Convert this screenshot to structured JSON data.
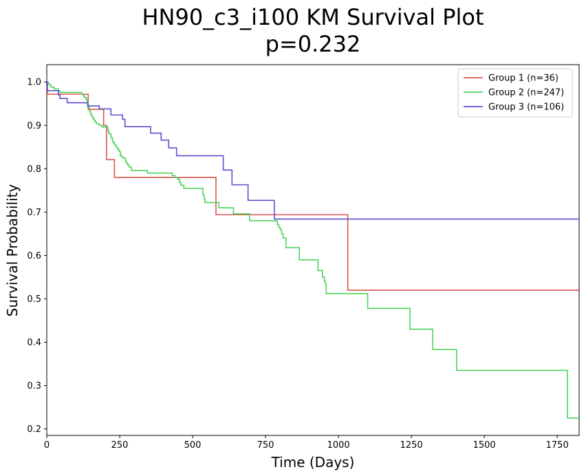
{
  "chart_data": {
    "type": "line",
    "step": true,
    "title": "HN90_c3_i100 KM Survival Plot",
    "subtitle": "p=0.232",
    "xlabel": "Time (Days)",
    "ylabel": "Survival Probability",
    "xlim": [
      0,
      1825
    ],
    "ylim": [
      0.185,
      1.04
    ],
    "xticks": [
      0,
      250,
      500,
      750,
      1000,
      1250,
      1500,
      1750
    ],
    "yticks": [
      0.2,
      0.3,
      0.4,
      0.5,
      0.6,
      0.7,
      0.8,
      0.9,
      1.0
    ],
    "xtick_labels": [
      "0",
      "250",
      "500",
      "750",
      "1000",
      "1250",
      "1500",
      "1750"
    ],
    "ytick_labels": [
      "0.2",
      "0.3",
      "0.4",
      "0.5",
      "0.6",
      "0.7",
      "0.8",
      "0.9",
      "1.0"
    ],
    "grid": false,
    "legend_position": "top-right",
    "series": [
      {
        "name": "Group 1 (n=36)",
        "color": "#d9534f",
        "points": [
          [
            0,
            1.0
          ],
          [
            2,
            0.972
          ],
          [
            142,
            0.972
          ],
          [
            142,
            0.937
          ],
          [
            195,
            0.937
          ],
          [
            195,
            0.9
          ],
          [
            205,
            0.9
          ],
          [
            205,
            0.821
          ],
          [
            232,
            0.821
          ],
          [
            232,
            0.78
          ],
          [
            580,
            0.78
          ],
          [
            580,
            0.694
          ],
          [
            1032,
            0.694
          ],
          [
            1032,
            0.52
          ],
          [
            1825,
            0.52
          ]
        ]
      },
      {
        "name": "Group 2 (n=247)",
        "color": "#4cd35a",
        "points": [
          [
            0,
            1.0
          ],
          [
            5,
            0.996
          ],
          [
            10,
            0.992
          ],
          [
            15,
            0.988
          ],
          [
            25,
            0.984
          ],
          [
            40,
            0.98
          ],
          [
            45,
            0.976
          ],
          [
            120,
            0.972
          ],
          [
            125,
            0.968
          ],
          [
            130,
            0.964
          ],
          [
            135,
            0.96
          ],
          [
            138,
            0.956
          ],
          [
            140,
            0.952
          ],
          [
            142,
            0.948
          ],
          [
            143,
            0.944
          ],
          [
            145,
            0.94
          ],
          [
            146,
            0.936
          ],
          [
            147,
            0.932
          ],
          [
            150,
            0.928
          ],
          [
            152,
            0.924
          ],
          [
            155,
            0.92
          ],
          [
            158,
            0.916
          ],
          [
            162,
            0.912
          ],
          [
            165,
            0.908
          ],
          [
            170,
            0.904
          ],
          [
            180,
            0.9
          ],
          [
            190,
            0.896
          ],
          [
            210,
            0.888
          ],
          [
            212,
            0.884
          ],
          [
            215,
            0.88
          ],
          [
            220,
            0.872
          ],
          [
            225,
            0.864
          ],
          [
            228,
            0.86
          ],
          [
            232,
            0.856
          ],
          [
            236,
            0.852
          ],
          [
            240,
            0.848
          ],
          [
            244,
            0.844
          ],
          [
            248,
            0.84
          ],
          [
            252,
            0.832
          ],
          [
            255,
            0.828
          ],
          [
            262,
            0.824
          ],
          [
            270,
            0.816
          ],
          [
            274,
            0.812
          ],
          [
            278,
            0.808
          ],
          [
            282,
            0.804
          ],
          [
            290,
            0.796
          ],
          [
            345,
            0.79
          ],
          [
            430,
            0.784
          ],
          [
            440,
            0.78
          ],
          [
            448,
            0.776
          ],
          [
            455,
            0.768
          ],
          [
            460,
            0.762
          ],
          [
            470,
            0.755
          ],
          [
            535,
            0.74
          ],
          [
            540,
            0.73
          ],
          [
            542,
            0.722
          ],
          [
            590,
            0.71
          ],
          [
            640,
            0.696
          ],
          [
            695,
            0.68
          ],
          [
            790,
            0.672
          ],
          [
            795,
            0.665
          ],
          [
            800,
            0.66
          ],
          [
            805,
            0.65
          ],
          [
            810,
            0.64
          ],
          [
            820,
            0.618
          ],
          [
            866,
            0.59
          ],
          [
            930,
            0.565
          ],
          [
            945,
            0.55
          ],
          [
            952,
            0.54
          ],
          [
            955,
            0.535
          ],
          [
            958,
            0.512
          ],
          [
            1100,
            0.478
          ],
          [
            1245,
            0.43
          ],
          [
            1323,
            0.383
          ],
          [
            1405,
            0.335
          ],
          [
            1785,
            0.225
          ],
          [
            1825,
            0.225
          ]
        ]
      },
      {
        "name": "Group 3 (n=106)",
        "color": "#5b4fd1",
        "points": [
          [
            0,
            1.0
          ],
          [
            2,
            0.98
          ],
          [
            40,
            0.98
          ],
          [
            40,
            0.97
          ],
          [
            45,
            0.97
          ],
          [
            45,
            0.962
          ],
          [
            70,
            0.962
          ],
          [
            70,
            0.952
          ],
          [
            140,
            0.952
          ],
          [
            140,
            0.945
          ],
          [
            180,
            0.945
          ],
          [
            180,
            0.938
          ],
          [
            220,
            0.938
          ],
          [
            220,
            0.924
          ],
          [
            260,
            0.924
          ],
          [
            260,
            0.914
          ],
          [
            268,
            0.914
          ],
          [
            268,
            0.897
          ],
          [
            356,
            0.897
          ],
          [
            356,
            0.882
          ],
          [
            392,
            0.882
          ],
          [
            392,
            0.866
          ],
          [
            418,
            0.866
          ],
          [
            418,
            0.848
          ],
          [
            445,
            0.848
          ],
          [
            445,
            0.83
          ],
          [
            605,
            0.83
          ],
          [
            605,
            0.797
          ],
          [
            635,
            0.797
          ],
          [
            635,
            0.763
          ],
          [
            690,
            0.763
          ],
          [
            690,
            0.727
          ],
          [
            780,
            0.727
          ],
          [
            780,
            0.684
          ],
          [
            1825,
            0.684
          ]
        ]
      }
    ]
  }
}
